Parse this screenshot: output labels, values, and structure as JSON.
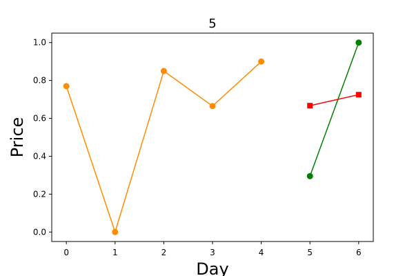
{
  "chart_data": {
    "type": "line",
    "title": "5",
    "xlabel": "Day",
    "ylabel": "Price",
    "xlim": [
      -0.3,
      6.3
    ],
    "ylim": [
      -0.05,
      1.05
    ],
    "xticks": [
      0,
      1,
      2,
      3,
      4,
      5,
      6
    ],
    "yticks": [
      0.0,
      0.2,
      0.4,
      0.6,
      0.8,
      1.0
    ],
    "ytick_labels": [
      "0.0",
      "0.2",
      "0.4",
      "0.6",
      "0.8",
      "1.0"
    ],
    "grid": false,
    "series": [
      {
        "x": [
          0,
          1,
          2,
          3,
          4
        ],
        "y": [
          0.77,
          0.0,
          0.85,
          0.665,
          0.9
        ],
        "color": "#ff8c00",
        "marker": "circle"
      },
      {
        "x": [
          5,
          6
        ],
        "y": [
          0.295,
          1.0
        ],
        "color": "#008000",
        "marker": "circle"
      },
      {
        "x": [
          5,
          6
        ],
        "y": [
          0.667,
          0.725
        ],
        "color": "#ff0000",
        "marker": "square"
      }
    ]
  }
}
